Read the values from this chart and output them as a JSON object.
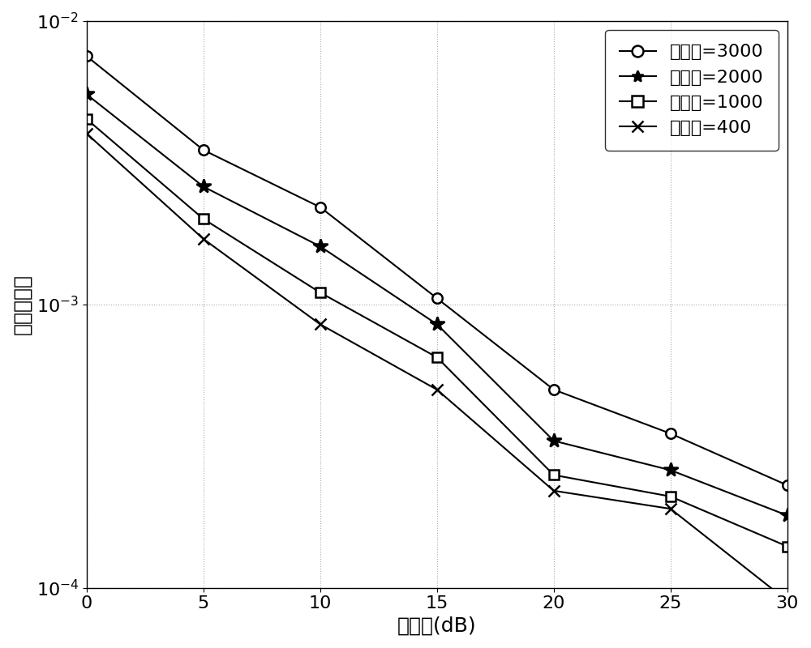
{
  "x": [
    0,
    5,
    10,
    15,
    20,
    25,
    30
  ],
  "series": {
    "3000": [
      0.0075,
      0.0035,
      0.0022,
      0.00105,
      0.0005,
      0.00035,
      0.00023
    ],
    "2000": [
      0.0055,
      0.0026,
      0.0016,
      0.00085,
      0.00033,
      0.00026,
      0.00018
    ],
    "1000": [
      0.0045,
      0.002,
      0.0011,
      0.00065,
      0.00025,
      0.00021,
      0.00014
    ],
    "400": [
      0.004,
      0.0017,
      0.00085,
      0.0005,
      0.00022,
      0.00019,
      9e-05
    ]
  },
  "markers": {
    "3000": "o",
    "2000": "*",
    "1000": "s",
    "400": "x"
  },
  "markerfacecolors": {
    "3000": "white",
    "2000": "black",
    "1000": "white",
    "400": "black"
  },
  "markersizes": {
    "3000": 9,
    "2000": 13,
    "1000": 9,
    "400": 10
  },
  "labels": {
    "3000": "压缩率=3000",
    "2000": "压缩率=2000",
    "1000": "压缩率=1000",
    "400": "压缩率=400"
  },
  "xlabel": "信噪比(dB)",
  "ylabel": "均方根误差",
  "xlim": [
    0,
    30
  ],
  "ylim": [
    0.0001,
    0.01
  ],
  "color": "#000000",
  "linewidth": 1.5,
  "grid_color": "#aaaaaa",
  "background_color": "#ffffff",
  "legend_loc": "upper right",
  "xlabel_fontsize": 18,
  "ylabel_fontsize": 18,
  "tick_fontsize": 16,
  "legend_fontsize": 16
}
